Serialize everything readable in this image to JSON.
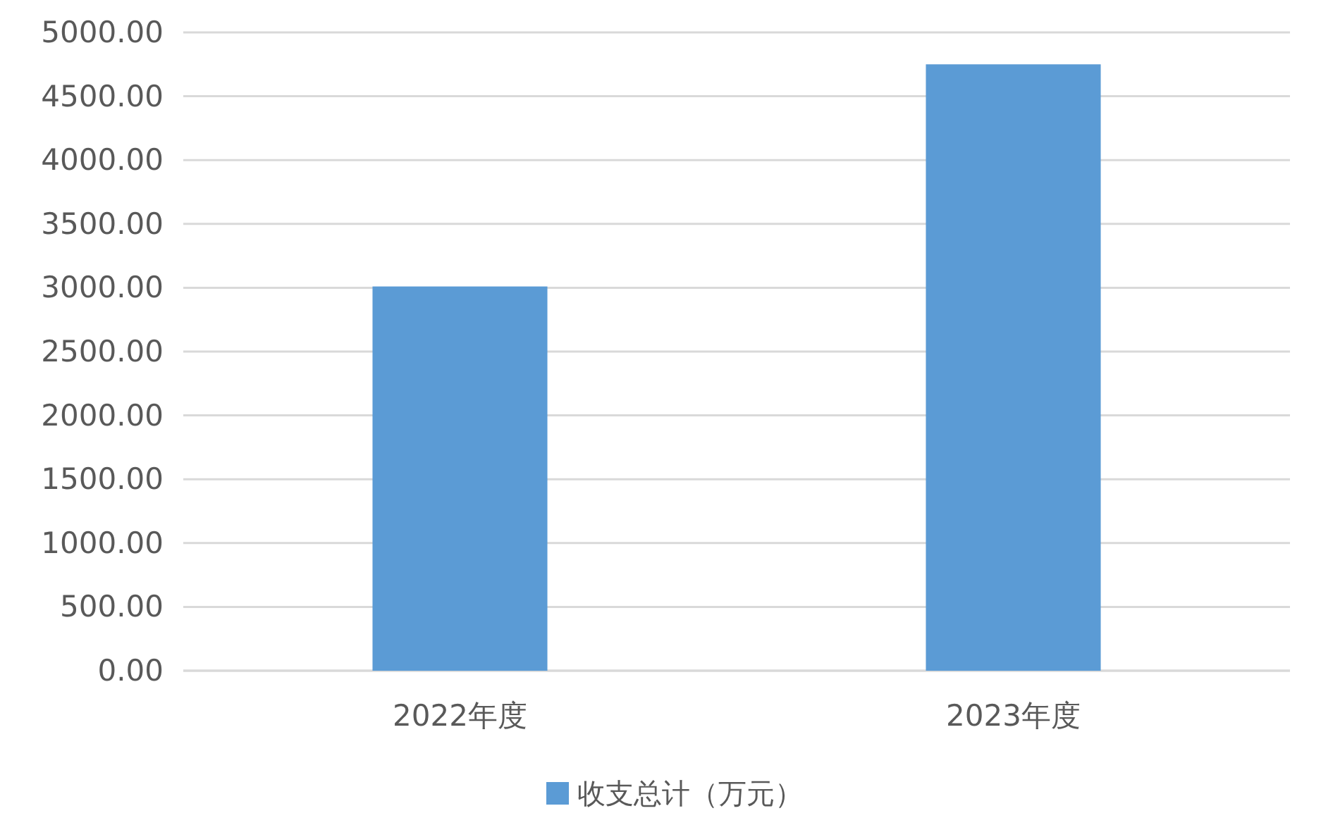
{
  "chart_data": {
    "type": "bar",
    "categories": [
      "2022年度",
      "2023年度"
    ],
    "series": [
      {
        "name": "收支总计（万元）",
        "color": "#5b9bd5",
        "values": [
          3010,
          4750
        ]
      }
    ],
    "ylim": [
      0,
      5000
    ],
    "yticks": [
      {
        "value": 0,
        "label": "0.00"
      },
      {
        "value": 500,
        "label": "500.00"
      },
      {
        "value": 1000,
        "label": "1000.00"
      },
      {
        "value": 1500,
        "label": "1500.00"
      },
      {
        "value": 2000,
        "label": "2000.00"
      },
      {
        "value": 2500,
        "label": "2500.00"
      },
      {
        "value": 3000,
        "label": "3000.00"
      },
      {
        "value": 3500,
        "label": "3500.00"
      },
      {
        "value": 4000,
        "label": "4000.00"
      },
      {
        "value": 4500,
        "label": "4500.00"
      },
      {
        "value": 5000,
        "label": "5000.00"
      }
    ],
    "grid": "y",
    "legend": "bottom"
  }
}
